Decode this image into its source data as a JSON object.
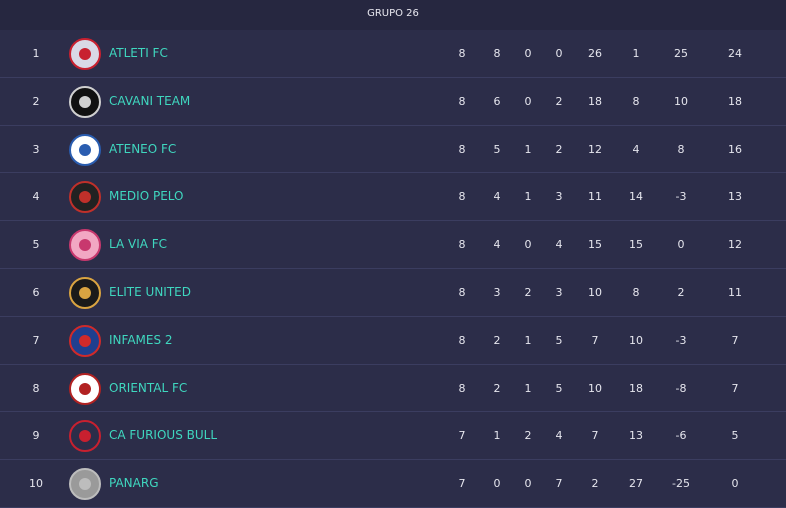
{
  "header": {
    "title": "GRUPO 26"
  },
  "table": {
    "rows": [
      [
        1,
        "ATLETI FC",
        8,
        8,
        0,
        0,
        26,
        1,
        25,
        24
      ],
      [
        2,
        "CAVANI TEAM",
        8,
        6,
        0,
        2,
        18,
        8,
        10,
        18
      ],
      [
        3,
        "ATENEO FC",
        8,
        5,
        1,
        2,
        12,
        4,
        8,
        16
      ],
      [
        4,
        "MEDIO PELO",
        8,
        4,
        1,
        3,
        11,
        14,
        -3,
        13
      ],
      [
        5,
        "LA VIA FC",
        8,
        4,
        0,
        4,
        15,
        15,
        0,
        12
      ],
      [
        6,
        "ELITE UNITED",
        8,
        3,
        2,
        3,
        10,
        8,
        2,
        11
      ],
      [
        7,
        "INFAMES 2",
        8,
        2,
        1,
        5,
        7,
        10,
        -3,
        7
      ],
      [
        8,
        "ORIENTAL FC",
        8,
        2,
        1,
        5,
        10,
        18,
        -8,
        7
      ],
      [
        9,
        "CA FURIOUS BULL",
        7,
        1,
        2,
        4,
        7,
        13,
        -6,
        5
      ],
      [
        10,
        "PANARG",
        7,
        0,
        0,
        7,
        2,
        27,
        -25,
        0
      ]
    ]
  }
}
